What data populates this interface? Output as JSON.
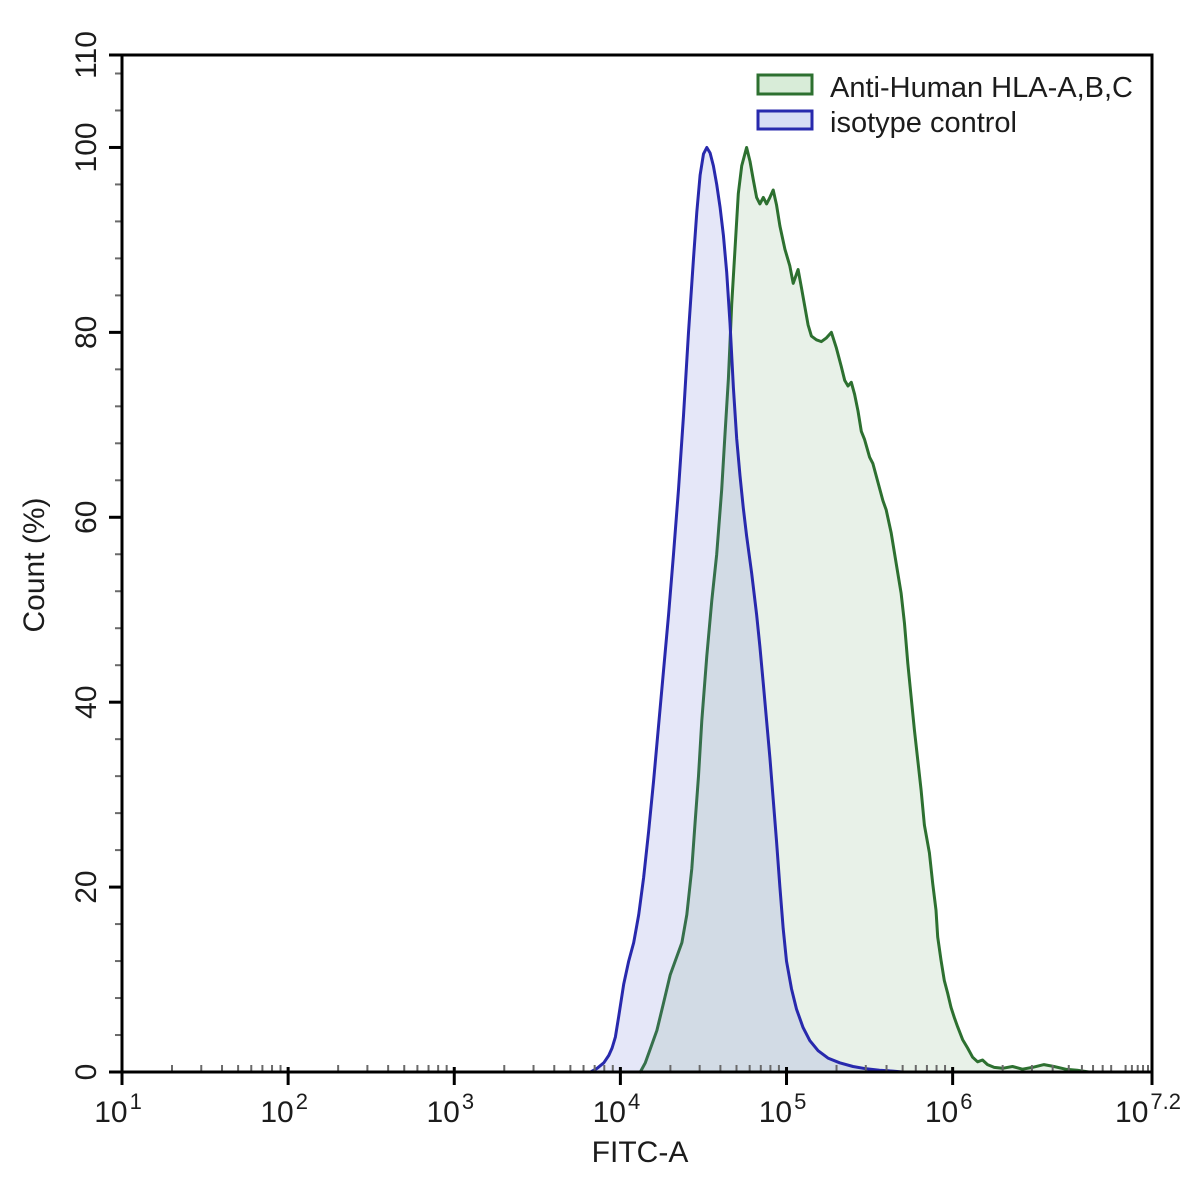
{
  "figure": {
    "background": "#ffffff",
    "frame_color": "#000000"
  },
  "axes": {
    "x": {
      "label": "FITC-A",
      "scale": "log10",
      "range_log": [
        1,
        7.2
      ],
      "major_ticks": [
        {
          "base": "10",
          "exp": "1",
          "log": 1
        },
        {
          "base": "10",
          "exp": "2",
          "log": 2
        },
        {
          "base": "10",
          "exp": "3",
          "log": 3
        },
        {
          "base": "10",
          "exp": "4",
          "log": 4
        },
        {
          "base": "10",
          "exp": "5",
          "log": 5
        },
        {
          "base": "10",
          "exp": "6",
          "log": 6
        },
        {
          "base": "10",
          "exp": "7.2",
          "log": 7.2
        }
      ],
      "minor_mantissas": [
        2,
        3,
        4,
        5,
        6,
        7,
        8,
        9
      ],
      "end_minor_logs": [
        7.041,
        7.079,
        7.114,
        7.146,
        7.176
      ]
    },
    "y": {
      "label": "Count  (%)",
      "range": [
        0,
        110
      ],
      "major_ticks": [
        0,
        20,
        40,
        60,
        80,
        100,
        110
      ],
      "minor_tick_step": 4
    }
  },
  "legend": {
    "entries": [
      {
        "label": "Anti-Human HLA-A,B,C",
        "stroke": "#2d7030",
        "fill": "#d8ecd8"
      },
      {
        "label": "isotype control",
        "stroke": "#2829ad",
        "fill": "#d7dcf4"
      }
    ]
  },
  "chart_data": {
    "type": "area",
    "title": "",
    "xlabel": "FITC-A",
    "ylabel": "Count (%)",
    "x_scale": "log10",
    "xlim_log": [
      1,
      7.2
    ],
    "ylim": [
      0,
      110
    ],
    "grid": false,
    "legend_position": "top-right",
    "series": [
      {
        "name": "Anti-Human HLA-A,B,C",
        "stroke": "#2d7030",
        "fill": "rgba(110,170,110,0.16)",
        "peak_log_x": 4.76,
        "peak_count": 100,
        "points": [
          [
            4.12,
            0
          ],
          [
            4.15,
            1
          ],
          [
            4.18,
            2.5
          ],
          [
            4.22,
            4.5
          ],
          [
            4.26,
            7.5
          ],
          [
            4.3,
            10.5
          ],
          [
            4.34,
            12.5
          ],
          [
            4.37,
            14
          ],
          [
            4.4,
            17
          ],
          [
            4.43,
            22
          ],
          [
            4.45,
            27
          ],
          [
            4.47,
            32
          ],
          [
            4.49,
            38
          ],
          [
            4.52,
            45
          ],
          [
            4.55,
            51
          ],
          [
            4.58,
            56
          ],
          [
            4.61,
            63
          ],
          [
            4.63,
            69
          ],
          [
            4.65,
            75
          ],
          [
            4.67,
            83
          ],
          [
            4.69,
            89
          ],
          [
            4.71,
            95
          ],
          [
            4.73,
            98
          ],
          [
            4.76,
            100
          ],
          [
            4.78,
            98.5
          ],
          [
            4.8,
            96.5
          ],
          [
            4.82,
            94.6
          ],
          [
            4.84,
            93.9
          ],
          [
            4.86,
            94.6
          ],
          [
            4.88,
            93.9
          ],
          [
            4.9,
            94.6
          ],
          [
            4.92,
            95.4
          ],
          [
            4.94,
            93.8
          ],
          [
            4.96,
            91.5
          ],
          [
            4.99,
            89
          ],
          [
            5.02,
            87.2
          ],
          [
            5.04,
            85.3
          ],
          [
            5.07,
            86.8
          ],
          [
            5.09,
            84.8
          ],
          [
            5.11,
            82.8
          ],
          [
            5.13,
            80.8
          ],
          [
            5.15,
            79.6
          ],
          [
            5.18,
            79.2
          ],
          [
            5.21,
            79
          ],
          [
            5.24,
            79.4
          ],
          [
            5.27,
            80
          ],
          [
            5.3,
            78.3
          ],
          [
            5.33,
            76.3
          ],
          [
            5.35,
            74.8
          ],
          [
            5.37,
            74.2
          ],
          [
            5.39,
            74.6
          ],
          [
            5.41,
            73.3
          ],
          [
            5.43,
            71.5
          ],
          [
            5.45,
            69.3
          ],
          [
            5.47,
            68.4
          ],
          [
            5.5,
            66.5
          ],
          [
            5.52,
            65.8
          ],
          [
            5.55,
            63.8
          ],
          [
            5.58,
            61.8
          ],
          [
            5.6,
            60.8
          ],
          [
            5.63,
            58.3
          ],
          [
            5.66,
            55
          ],
          [
            5.69,
            51.8
          ],
          [
            5.71,
            48.5
          ],
          [
            5.73,
            44.2
          ],
          [
            5.75,
            40.6
          ],
          [
            5.77,
            37
          ],
          [
            5.79,
            33.7
          ],
          [
            5.81,
            30.5
          ],
          [
            5.83,
            26.7
          ],
          [
            5.86,
            23.7
          ],
          [
            5.88,
            20.4
          ],
          [
            5.9,
            17.5
          ],
          [
            5.91,
            14.6
          ],
          [
            5.93,
            12.1
          ],
          [
            5.95,
            9.9
          ],
          [
            5.97,
            8.5
          ],
          [
            5.99,
            7
          ],
          [
            6.01,
            5.9
          ],
          [
            6.03,
            4.9
          ],
          [
            6.06,
            3.5
          ],
          [
            6.09,
            2.6
          ],
          [
            6.12,
            1.6
          ],
          [
            6.15,
            1.1
          ],
          [
            6.18,
            1.3
          ],
          [
            6.21,
            0.8
          ],
          [
            6.25,
            0.5
          ],
          [
            6.3,
            0.4
          ],
          [
            6.36,
            0.6
          ],
          [
            6.42,
            0.3
          ],
          [
            6.48,
            0.5
          ],
          [
            6.55,
            0.8
          ],
          [
            6.61,
            0.6
          ],
          [
            6.68,
            0.3
          ],
          [
            6.75,
            0.2
          ],
          [
            6.82,
            0
          ]
        ]
      },
      {
        "name": "isotype control",
        "stroke": "#2829ad",
        "fill": "rgba(100,110,215,0.17)",
        "peak_log_x": 4.52,
        "peak_count": 100,
        "points": [
          [
            3.82,
            0
          ],
          [
            3.86,
            0.4
          ],
          [
            3.9,
            1
          ],
          [
            3.93,
            1.8
          ],
          [
            3.95,
            2.6
          ],
          [
            3.97,
            3.8
          ],
          [
            3.99,
            6
          ],
          [
            4.02,
            9.5
          ],
          [
            4.05,
            12
          ],
          [
            4.08,
            14
          ],
          [
            4.11,
            17
          ],
          [
            4.14,
            21
          ],
          [
            4.17,
            26
          ],
          [
            4.2,
            31.5
          ],
          [
            4.23,
            37.5
          ],
          [
            4.26,
            43.5
          ],
          [
            4.29,
            49.5
          ],
          [
            4.32,
            56
          ],
          [
            4.35,
            63
          ],
          [
            4.38,
            71
          ],
          [
            4.41,
            80
          ],
          [
            4.44,
            88
          ],
          [
            4.46,
            93
          ],
          [
            4.48,
            97
          ],
          [
            4.5,
            99.3
          ],
          [
            4.52,
            100
          ],
          [
            4.54,
            99.4
          ],
          [
            4.56,
            98
          ],
          [
            4.58,
            96
          ],
          [
            4.6,
            93.5
          ],
          [
            4.62,
            90.5
          ],
          [
            4.64,
            86.5
          ],
          [
            4.66,
            81
          ],
          [
            4.68,
            74
          ],
          [
            4.7,
            68.5
          ],
          [
            4.72,
            64.5
          ],
          [
            4.74,
            61
          ],
          [
            4.76,
            58
          ],
          [
            4.79,
            54
          ],
          [
            4.82,
            49.5
          ],
          [
            4.84,
            46
          ],
          [
            4.86,
            42
          ],
          [
            4.88,
            38
          ],
          [
            4.9,
            34
          ],
          [
            4.92,
            29.5
          ],
          [
            4.94,
            25
          ],
          [
            4.96,
            20
          ],
          [
            4.98,
            15.5
          ],
          [
            5.0,
            12
          ],
          [
            5.03,
            9
          ],
          [
            5.06,
            6.8
          ],
          [
            5.1,
            4.8
          ],
          [
            5.14,
            3.4
          ],
          [
            5.19,
            2.3
          ],
          [
            5.25,
            1.5
          ],
          [
            5.32,
            1
          ],
          [
            5.4,
            0.6
          ],
          [
            5.48,
            0.35
          ],
          [
            5.56,
            0.2
          ],
          [
            5.64,
            0.1
          ],
          [
            5.7,
            0
          ]
        ]
      }
    ]
  }
}
